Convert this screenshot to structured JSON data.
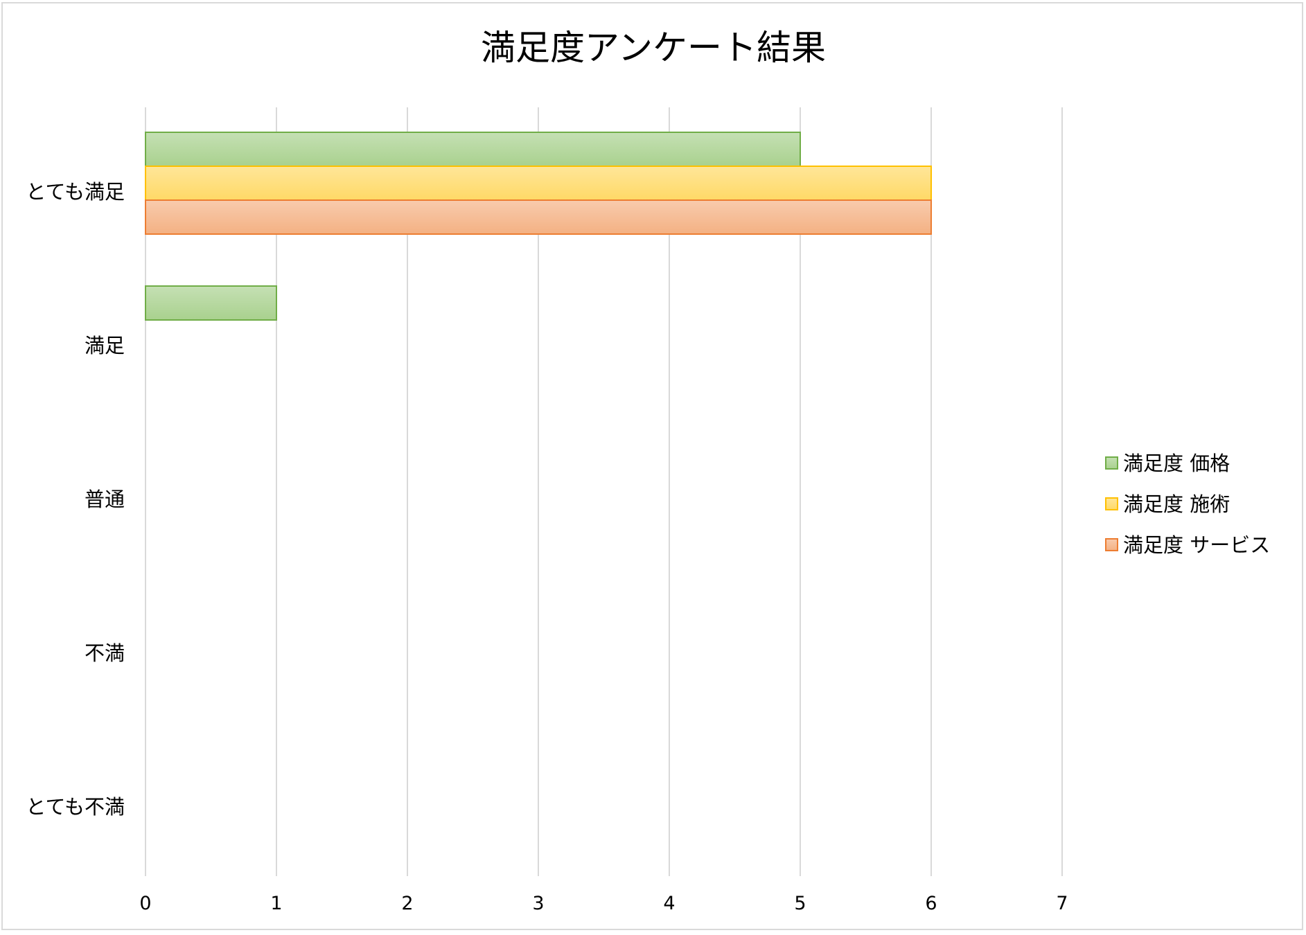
{
  "chart_data": {
    "type": "bar",
    "orientation": "horizontal",
    "title": "満足度アンケート結果",
    "categories": [
      "とても満足",
      "満足",
      "普通",
      "不満",
      "とても不満"
    ],
    "series": [
      {
        "name": "満足度 価格",
        "values": [
          5,
          1,
          0,
          0,
          0
        ],
        "fill": "#a9d18e",
        "stroke": "#70ad47"
      },
      {
        "name": "満足度 施術",
        "values": [
          6,
          0,
          0,
          0,
          0
        ],
        "fill": "#ffd966",
        "stroke": "#ffc000"
      },
      {
        "name": "満足度 サービス",
        "values": [
          6,
          0,
          0,
          0,
          0
        ],
        "fill": "#f4b183",
        "stroke": "#ed7d31"
      }
    ],
    "xlim": [
      0,
      7
    ],
    "xticks": [
      "0",
      "1",
      "2",
      "3",
      "4",
      "5",
      "6",
      "7"
    ],
    "grid": true,
    "legend_position": "right"
  }
}
